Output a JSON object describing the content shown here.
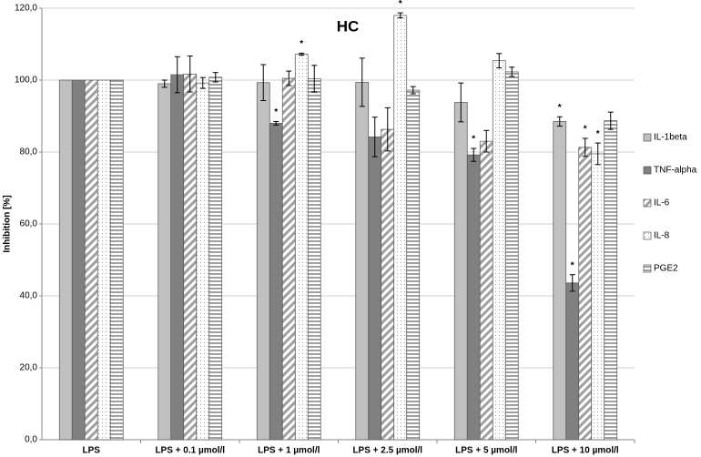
{
  "chart_data": {
    "type": "bar",
    "title": "HC",
    "y_label": "Inhibition [%]",
    "categories": [
      "LPS",
      "LPS + 0.1 µmol/l",
      "LPS + 1 µmol/l",
      "LPS + 2.5 µmol/l",
      "LPS + 5 µmol/l",
      "LPS + 10 µmol/l"
    ],
    "ylim": [
      0,
      120
    ],
    "yticks": [
      {
        "value": 0,
        "label": "0,0"
      },
      {
        "value": 20,
        "label": "20,0"
      },
      {
        "value": 40,
        "label": "40,0"
      },
      {
        "value": 60,
        "label": "60,0"
      },
      {
        "value": 80,
        "label": "80,0"
      },
      {
        "value": 100,
        "label": "100,0"
      },
      {
        "value": 120,
        "label": "120,0"
      }
    ],
    "grid": true,
    "legend": "right",
    "series": [
      {
        "name": "IL-1beta",
        "color": "#c0c0c0",
        "pattern": "solid",
        "values": [
          100,
          99,
          99.3,
          99.4,
          93.8,
          88.5
        ],
        "errors": [
          0,
          1,
          5,
          6.7,
          5.4,
          1.3
        ],
        "markers": [
          null,
          null,
          null,
          null,
          null,
          "*"
        ]
      },
      {
        "name": "TNF-alpha",
        "color": "#808080",
        "pattern": "solid",
        "values": [
          100,
          101.5,
          88,
          84.2,
          79.2,
          43.6
        ],
        "errors": [
          0,
          5,
          0.5,
          5.5,
          1.8,
          2.3
        ],
        "markers": [
          null,
          null,
          "*",
          null,
          "*",
          "*"
        ]
      },
      {
        "name": "IL-6",
        "color": "#a0a0a0",
        "pattern": "diagonal",
        "values": [
          100,
          101.7,
          100.5,
          86.3,
          83,
          81.3
        ],
        "errors": [
          0,
          5,
          2,
          6,
          3,
          2.5
        ],
        "markers": [
          null,
          null,
          null,
          null,
          null,
          "*"
        ]
      },
      {
        "name": "IL-8",
        "color": "#a0a0a0",
        "pattern": "dots",
        "values": [
          100,
          99.2,
          107.2,
          118,
          105.4,
          79.5
        ],
        "errors": [
          0,
          1.5,
          0.3,
          0.7,
          2,
          3
        ],
        "markers": [
          null,
          null,
          "*",
          "*",
          null,
          "*"
        ]
      },
      {
        "name": "PGE2",
        "color": "#a0a0a0",
        "pattern": "horizontal",
        "values": [
          100,
          100.8,
          100.4,
          97.2,
          102.3,
          88.7
        ],
        "errors": [
          0,
          1.3,
          3.7,
          1,
          1.3,
          2.4
        ],
        "markers": [
          null,
          null,
          null,
          null,
          null,
          null
        ]
      }
    ]
  }
}
